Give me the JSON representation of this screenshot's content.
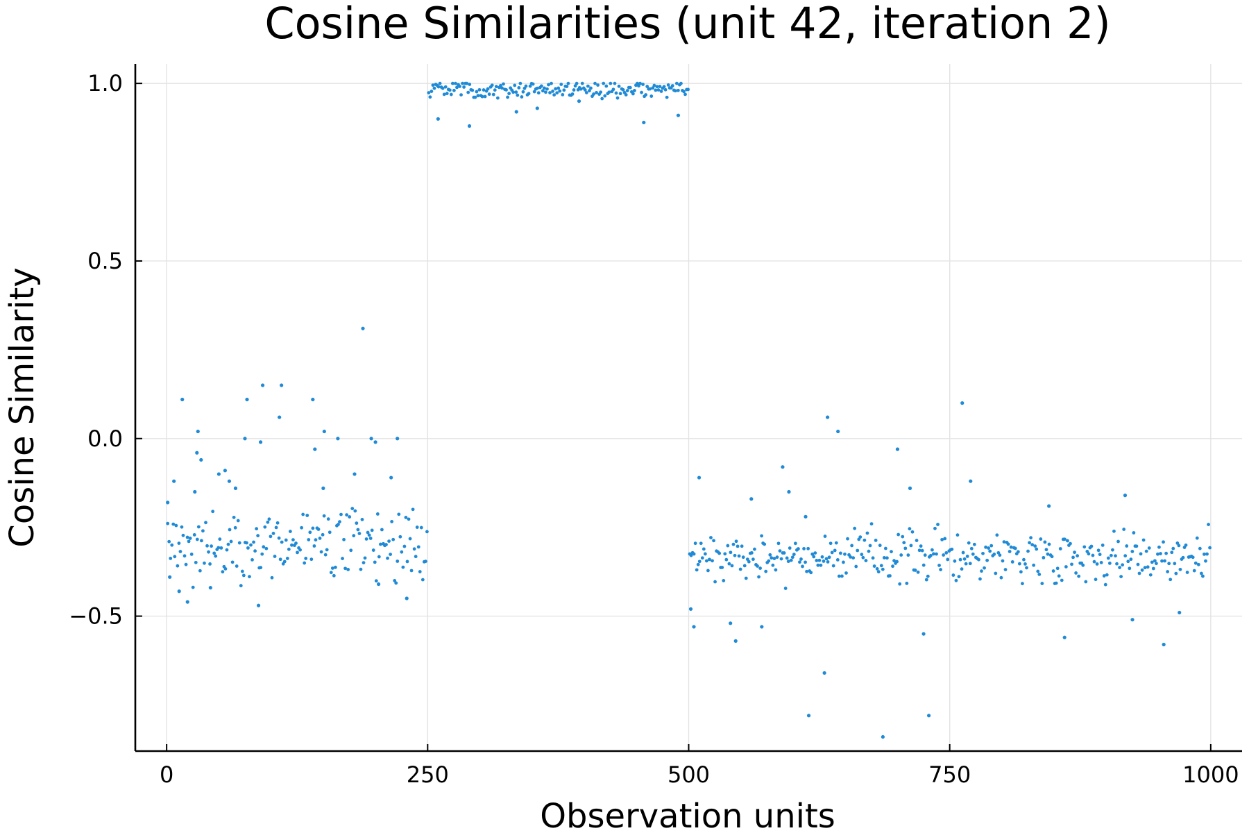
{
  "chart_data": {
    "type": "scatter",
    "title": "Cosine Similarities (unit 42, iteration 2)",
    "xlabel": "Observation units",
    "ylabel": "Cosine Similarity",
    "xlim": [
      -30,
      1030
    ],
    "ylim": [
      -0.88,
      1.055
    ],
    "xticks": [
      0,
      250,
      500,
      750,
      1000
    ],
    "xtick_labels": [
      "0",
      "250",
      "500",
      "750",
      "1000"
    ],
    "yticks": [
      -0.5,
      0.0,
      0.5,
      1.0
    ],
    "ytick_labels": [
      "−0.5",
      "0.0",
      "0.5",
      "1.0"
    ],
    "grid": true,
    "legend": "none",
    "marker_color": "#1f8ad6",
    "series": [
      {
        "segments": [
          {
            "x_start": 1,
            "x_end": 250,
            "mean": -0.3,
            "noise": 0.05
          },
          {
            "x_start": 251,
            "x_end": 500,
            "mean": 0.985,
            "noise": 0.012
          },
          {
            "x_start": 501,
            "x_end": 1000,
            "mean": -0.33,
            "noise": 0.035
          }
        ],
        "outliers": [
          {
            "x": 1,
            "y": -0.18
          },
          {
            "x": 3,
            "y": -0.39
          },
          {
            "x": 7,
            "y": -0.12
          },
          {
            "x": 12,
            "y": -0.43
          },
          {
            "x": 15,
            "y": 0.11
          },
          {
            "x": 20,
            "y": -0.46
          },
          {
            "x": 27,
            "y": -0.15
          },
          {
            "x": 30,
            "y": 0.02
          },
          {
            "x": 29,
            "y": -0.04
          },
          {
            "x": 33,
            "y": -0.06
          },
          {
            "x": 42,
            "y": -0.42
          },
          {
            "x": 50,
            "y": -0.1
          },
          {
            "x": 56,
            "y": -0.09
          },
          {
            "x": 60,
            "y": -0.12
          },
          {
            "x": 66,
            "y": -0.14
          },
          {
            "x": 75,
            "y": 0.0
          },
          {
            "x": 77,
            "y": 0.11
          },
          {
            "x": 88,
            "y": -0.47
          },
          {
            "x": 90,
            "y": -0.01
          },
          {
            "x": 92,
            "y": 0.15
          },
          {
            "x": 108,
            "y": 0.06
          },
          {
            "x": 110,
            "y": 0.15
          },
          {
            "x": 140,
            "y": 0.11
          },
          {
            "x": 142,
            "y": -0.03
          },
          {
            "x": 150,
            "y": -0.14
          },
          {
            "x": 151,
            "y": 0.02
          },
          {
            "x": 164,
            "y": 0.0
          },
          {
            "x": 180,
            "y": -0.1
          },
          {
            "x": 188,
            "y": 0.31
          },
          {
            "x": 196,
            "y": 0.0
          },
          {
            "x": 200,
            "y": -0.01
          },
          {
            "x": 203,
            "y": -0.41
          },
          {
            "x": 215,
            "y": -0.11
          },
          {
            "x": 221,
            "y": 0.0
          },
          {
            "x": 230,
            "y": -0.45
          },
          {
            "x": 260,
            "y": 0.9
          },
          {
            "x": 290,
            "y": 0.88
          },
          {
            "x": 335,
            "y": 0.92
          },
          {
            "x": 355,
            "y": 0.93
          },
          {
            "x": 395,
            "y": 0.95
          },
          {
            "x": 457,
            "y": 0.89
          },
          {
            "x": 490,
            "y": 0.91
          },
          {
            "x": 502,
            "y": -0.48
          },
          {
            "x": 505,
            "y": -0.53
          },
          {
            "x": 510,
            "y": -0.11
          },
          {
            "x": 540,
            "y": -0.52
          },
          {
            "x": 545,
            "y": -0.57
          },
          {
            "x": 560,
            "y": -0.17
          },
          {
            "x": 570,
            "y": -0.53
          },
          {
            "x": 596,
            "y": -0.15
          },
          {
            "x": 590,
            "y": -0.08
          },
          {
            "x": 612,
            "y": -0.22
          },
          {
            "x": 615,
            "y": -0.78
          },
          {
            "x": 630,
            "y": -0.66
          },
          {
            "x": 633,
            "y": 0.06
          },
          {
            "x": 643,
            "y": 0.02
          },
          {
            "x": 686,
            "y": -0.84
          },
          {
            "x": 700,
            "y": -0.03
          },
          {
            "x": 712,
            "y": -0.14
          },
          {
            "x": 725,
            "y": -0.55
          },
          {
            "x": 730,
            "y": -0.78
          },
          {
            "x": 762,
            "y": 0.1
          },
          {
            "x": 770,
            "y": -0.12
          },
          {
            "x": 845,
            "y": -0.19
          },
          {
            "x": 860,
            "y": -0.56
          },
          {
            "x": 918,
            "y": -0.16
          },
          {
            "x": 925,
            "y": -0.51
          },
          {
            "x": 955,
            "y": -0.58
          },
          {
            "x": 970,
            "y": -0.49
          }
        ]
      }
    ]
  }
}
